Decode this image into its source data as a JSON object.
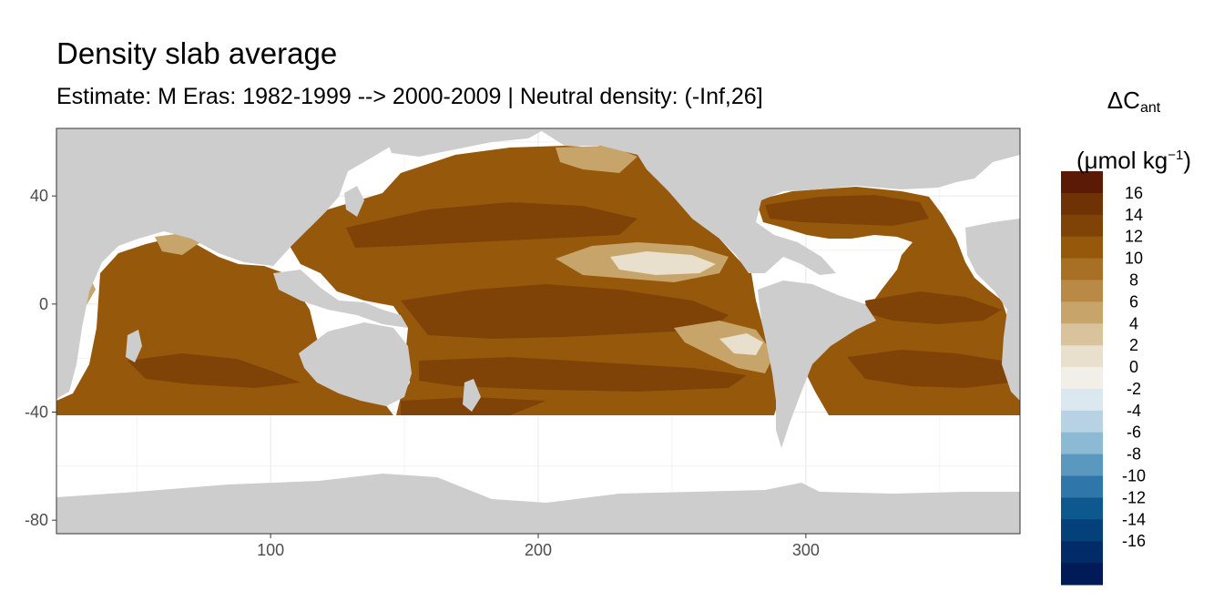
{
  "title": "Density slab average",
  "subtitle": "Estimate: M Eras: 1982-1999 --> 2000-2009 | Neutral density: (-Inf,26]",
  "legend": {
    "symbol": "ΔC",
    "symbol_sub": "ant",
    "unit_prefix": "(μmol kg",
    "unit_sup": "−1",
    "unit_suffix": ")",
    "bins": [
      {
        "label": "",
        "color": "#5a1a05"
      },
      {
        "label": "16",
        "color": "#6f3205"
      },
      {
        "label": "14",
        "color": "#804307"
      },
      {
        "label": "12",
        "color": "#96590c"
      },
      {
        "label": "10",
        "color": "#a87025"
      },
      {
        "label": "8",
        "color": "#b88a45"
      },
      {
        "label": "6",
        "color": "#c7a56a"
      },
      {
        "label": "4",
        "color": "#d8c39c"
      },
      {
        "label": "2",
        "color": "#e8dfcc"
      },
      {
        "label": "0",
        "color": "#f2efe8"
      },
      {
        "label": "-2",
        "color": "#dce8ef"
      },
      {
        "label": "-4",
        "color": "#b6d2e3"
      },
      {
        "label": "-6",
        "color": "#8cb9d4"
      },
      {
        "label": "-8",
        "color": "#5a98c0"
      },
      {
        "label": "-10",
        "color": "#2f77a8"
      },
      {
        "label": "-12",
        "color": "#0d588f"
      },
      {
        "label": "-14",
        "color": "#04407a"
      },
      {
        "label": "-16",
        "color": "#022c68"
      },
      {
        "label": "",
        "color": "#011b58"
      }
    ]
  },
  "map": {
    "x_ticks": [
      100,
      200,
      300
    ],
    "y_ticks": [
      40,
      0,
      -40,
      -80
    ],
    "x_range": [
      20,
      380
    ],
    "y_range": [
      -85,
      65
    ],
    "colors": {
      "land": "#cdcdcd",
      "missing": "#ffffff",
      "grid": "#ebebeb",
      "ocean_base": "#96590c",
      "ocean_dark": "#804307",
      "ocean_light": "#c7a56a",
      "ocean_palest": "#e8dfcc"
    }
  }
}
